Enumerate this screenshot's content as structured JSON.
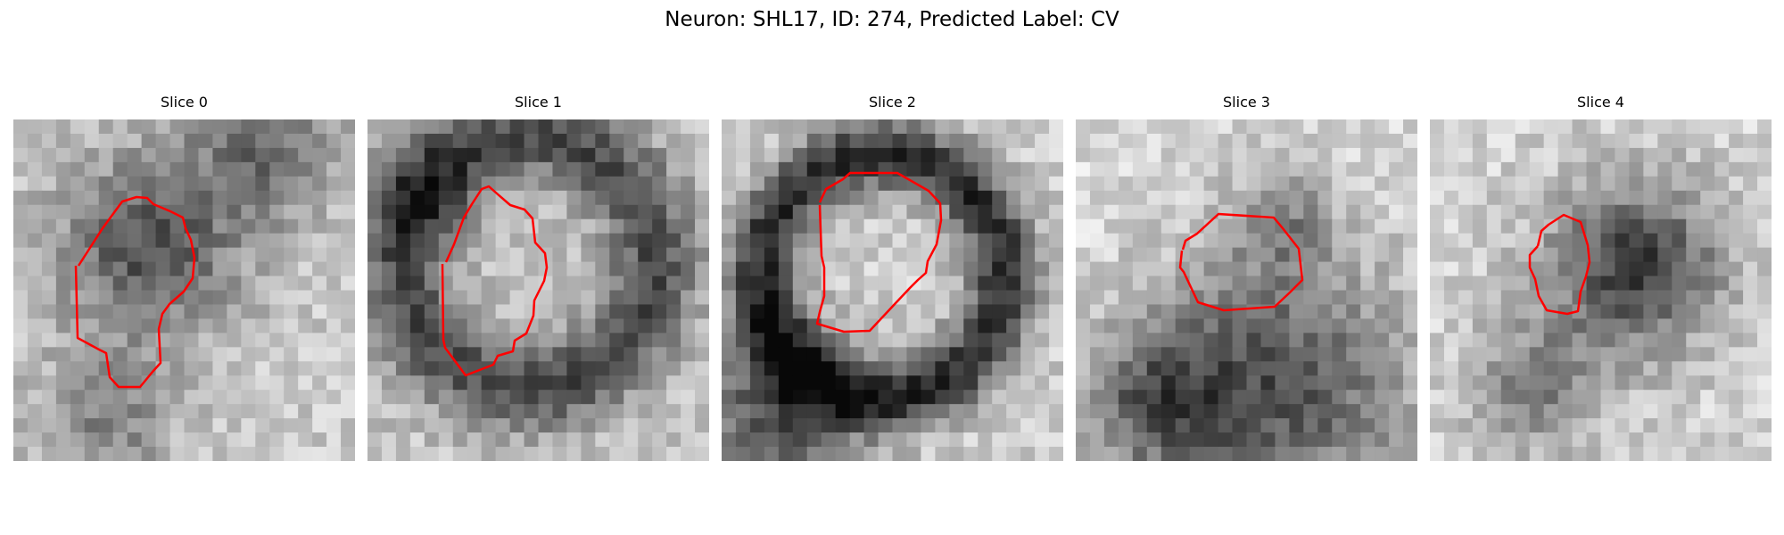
{
  "figure": {
    "title": "Neuron: SHL17, ID: 274, Predicted Label: CV"
  },
  "contour_color": "#ff0000",
  "panels": [
    {
      "title": "Slice 0"
    },
    {
      "title": "Slice 1"
    },
    {
      "title": "Slice 2"
    },
    {
      "title": "Slice 3"
    },
    {
      "title": "Slice 4"
    }
  ]
}
